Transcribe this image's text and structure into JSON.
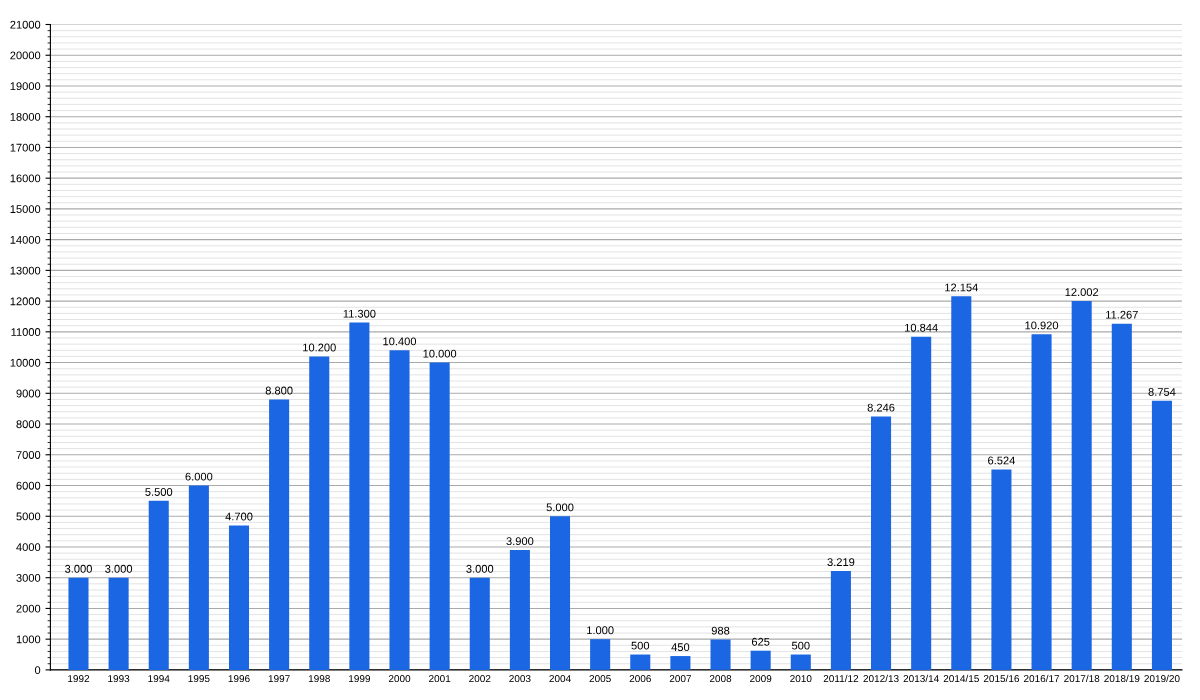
{
  "chart_data": {
    "type": "bar",
    "categories": [
      "1992",
      "1993",
      "1994",
      "1995",
      "1996",
      "1997",
      "1998",
      "1999",
      "2000",
      "2001",
      "2002",
      "2003",
      "2004",
      "2005",
      "2006",
      "2007",
      "2008",
      "2009",
      "2010",
      "2011/12",
      "2012/13",
      "2013/14",
      "2014/15",
      "2015/16",
      "2016/17",
      "2017/18",
      "2018/19",
      "2019/20"
    ],
    "values": [
      3000,
      3000,
      5500,
      6000,
      4700,
      8800,
      10200,
      11300,
      10400,
      10000,
      3000,
      3900,
      5000,
      1000,
      500,
      450,
      988,
      625,
      500,
      3219,
      8246,
      10844,
      12154,
      6524,
      10920,
      12002,
      11267,
      8754
    ],
    "value_labels": [
      "3.000",
      "3.000",
      "5.500",
      "6.000",
      "4.700",
      "8.800",
      "10.200",
      "11.300",
      "10.400",
      "10.000",
      "3.000",
      "3.900",
      "5.000",
      "1.000",
      "500",
      "450",
      "988",
      "625",
      "500",
      "3.219",
      "8.246",
      "10.844",
      "12.154",
      "6.524",
      "10.920",
      "12.002",
      "11.267",
      "8.754"
    ],
    "color": "#1a66e3",
    "ylim": [
      0,
      21000
    ],
    "yticks": [
      0,
      1000,
      2000,
      3000,
      4000,
      5000,
      6000,
      7000,
      8000,
      9000,
      10000,
      11000,
      12000,
      13000,
      14000,
      15000,
      16000,
      17000,
      18000,
      19000,
      20000,
      21000
    ],
    "grid": "y",
    "legend": false
  }
}
